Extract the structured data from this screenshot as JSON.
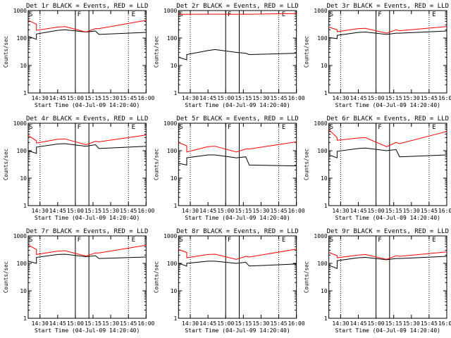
{
  "colors": {
    "background": "#ffffff",
    "events": "#000000",
    "lld": "#ff0000",
    "axis": "#000000"
  },
  "chart_data": [
    {
      "type": "line",
      "title": "Det 1r BLACK = Events, RED = LLD",
      "xlabel": "Start Time (04-Jul-09 14:20:40)",
      "ylabel": "Counts/sec",
      "x_ticks": [
        "14:30",
        "14:45",
        "15:00",
        "15:15",
        "15:30",
        "15:45",
        "16:00"
      ],
      "y_ticks": [
        "1",
        "10",
        "100",
        "1000"
      ],
      "y_scale": "log",
      "ylim": [
        1,
        1000
      ],
      "markers": [
        "S",
        "F",
        "E"
      ],
      "series": [
        {
          "kind": "events",
          "x_min": [
            0,
            7,
            7,
            25,
            31,
            49,
            57,
            60,
            100
          ],
          "values": [
            115,
            90,
            140,
            190,
            200,
            165,
            180,
            135,
            160
          ]
        },
        {
          "kind": "lld",
          "x_min": [
            0,
            7,
            7,
            25,
            31,
            49,
            57,
            60,
            100
          ],
          "values": [
            440,
            320,
            190,
            250,
            260,
            165,
            220,
            220,
            440
          ]
        }
      ]
    },
    {
      "type": "line",
      "title": "Det 2r BLACK = Events, RED = LLD",
      "xlabel": "Start Time (04-Jul-09 14:20:40)",
      "ylabel": "Counts/sec",
      "x_ticks": [
        "14:30",
        "14:45",
        "15:00",
        "15:15",
        "15:30",
        "15:45",
        "16:00"
      ],
      "y_ticks": [
        "1",
        "10",
        "100",
        "1000"
      ],
      "y_scale": "log",
      "ylim": [
        1,
        1000
      ],
      "markers": [
        "S",
        "F",
        "E"
      ],
      "series": [
        {
          "kind": "events",
          "x_min": [
            0,
            7,
            7,
            25,
            31,
            49,
            57,
            60,
            100
          ],
          "values": [
            20,
            16,
            25,
            35,
            38,
            30,
            28,
            25,
            28
          ]
        },
        {
          "kind": "lld",
          "x_min": [
            0,
            7,
            7,
            25,
            31,
            49,
            57,
            60,
            100
          ],
          "values": [
            730,
            730,
            730,
            740,
            740,
            730,
            740,
            735,
            780
          ]
        }
      ]
    },
    {
      "type": "line",
      "title": "Det 3r BLACK = Events, RED = LLD",
      "xlabel": "Start Time (04-Jul-09 14:20:40)",
      "ylabel": "Counts/sec",
      "x_ticks": [
        "14:30",
        "14:45",
        "15:00",
        "15:15",
        "15:30",
        "15:45",
        "16:00"
      ],
      "y_ticks": [
        "1",
        "10",
        "100",
        "1000"
      ],
      "y_scale": "log",
      "ylim": [
        1,
        1000
      ],
      "markers": [
        "S",
        "F",
        "E"
      ],
      "series": [
        {
          "kind": "events",
          "x_min": [
            0,
            7,
            7,
            25,
            31,
            49,
            57,
            60,
            100
          ],
          "values": [
            105,
            95,
            125,
            160,
            165,
            135,
            150,
            150,
            180
          ]
        },
        {
          "kind": "lld",
          "x_min": [
            0,
            7,
            7,
            25,
            31,
            49,
            57,
            60,
            100
          ],
          "values": [
            250,
            200,
            170,
            220,
            225,
            150,
            200,
            185,
            260
          ]
        }
      ]
    },
    {
      "type": "line",
      "title": "Det 4r BLACK = Events, RED = LLD",
      "xlabel": "Start Time (04-Jul-09 14:20:40)",
      "ylabel": "Counts/sec",
      "x_ticks": [
        "14:30",
        "14:45",
        "15:00",
        "15:15",
        "15:30",
        "15:45",
        "16:00"
      ],
      "y_ticks": [
        "1",
        "10",
        "100",
        "1000"
      ],
      "y_scale": "log",
      "ylim": [
        1,
        1000
      ],
      "markers": [
        "S",
        "F",
        "E"
      ],
      "series": [
        {
          "kind": "events",
          "x_min": [
            0,
            7,
            7,
            25,
            31,
            49,
            57,
            60,
            100
          ],
          "values": [
            100,
            80,
            135,
            175,
            180,
            145,
            165,
            120,
            145
          ]
        },
        {
          "kind": "lld",
          "x_min": [
            0,
            7,
            7,
            25,
            31,
            49,
            57,
            60,
            100
          ],
          "values": [
            360,
            230,
            190,
            260,
            270,
            165,
            220,
            210,
            370
          ]
        }
      ]
    },
    {
      "type": "line",
      "title": "Det 5r BLACK = Events, RED = LLD",
      "xlabel": "Start Time (04-Jul-09 14:20:40)",
      "ylabel": "Counts/sec",
      "x_ticks": [
        "14:30",
        "14:45",
        "15:00",
        "15:15",
        "15:30",
        "15:45",
        "16:00"
      ],
      "y_ticks": [
        "1",
        "10",
        "100",
        "1000"
      ],
      "y_scale": "log",
      "ylim": [
        1,
        1000
      ],
      "markers": [
        "S",
        "F",
        "E"
      ],
      "series": [
        {
          "kind": "events",
          "x_min": [
            0,
            7,
            7,
            25,
            31,
            49,
            57,
            60,
            100
          ],
          "values": [
            35,
            30,
            55,
            70,
            70,
            55,
            60,
            30,
            28
          ]
        },
        {
          "kind": "lld",
          "x_min": [
            0,
            7,
            7,
            25,
            31,
            49,
            57,
            60,
            100
          ],
          "values": [
            200,
            150,
            90,
            140,
            145,
            90,
            115,
            115,
            210
          ]
        }
      ]
    },
    {
      "type": "line",
      "title": "Det 6r BLACK = Events, RED = LLD",
      "xlabel": "Start Time (04-Jul-09 14:20:40)",
      "ylabel": "Counts/sec",
      "x_ticks": [
        "14:30",
        "14:45",
        "15:00",
        "15:15",
        "15:30",
        "15:45",
        "16:00"
      ],
      "y_ticks": [
        "1",
        "10",
        "100",
        "1000"
      ],
      "y_scale": "log",
      "ylim": [
        1,
        1000
      ],
      "markers": [
        "S",
        "F",
        "E"
      ],
      "series": [
        {
          "kind": "events",
          "x_min": [
            0,
            7,
            7,
            25,
            31,
            49,
            57,
            60,
            100
          ],
          "values": [
            70,
            55,
            95,
            120,
            125,
            100,
            110,
            60,
            70
          ]
        },
        {
          "kind": "lld",
          "x_min": [
            0,
            7,
            7,
            25,
            31,
            49,
            57,
            60,
            100
          ],
          "values": [
            580,
            300,
            240,
            290,
            300,
            140,
            200,
            180,
            500
          ]
        }
      ]
    },
    {
      "type": "line",
      "title": "Det 7r BLACK = Events, RED = LLD",
      "xlabel": "Start Time (04-Jul-09 14:20:40)",
      "ylabel": "Counts/sec",
      "x_ticks": [
        "14:30",
        "14:45",
        "15:00",
        "15:15",
        "15:30",
        "15:45",
        "16:00"
      ],
      "y_ticks": [
        "1",
        "10",
        "100",
        "1000"
      ],
      "y_scale": "log",
      "ylim": [
        1,
        1000
      ],
      "markers": [
        "S",
        "F",
        "E"
      ],
      "series": [
        {
          "kind": "events",
          "x_min": [
            0,
            7,
            7,
            25,
            31,
            49,
            57,
            60,
            100
          ],
          "values": [
            120,
            100,
            165,
            210,
            215,
            175,
            190,
            150,
            170
          ]
        },
        {
          "kind": "lld",
          "x_min": [
            0,
            7,
            7,
            25,
            31,
            49,
            57,
            60,
            100
          ],
          "values": [
            470,
            320,
            210,
            280,
            290,
            185,
            240,
            240,
            460
          ]
        }
      ]
    },
    {
      "type": "line",
      "title": "Det 8r BLACK = Events, RED = LLD",
      "xlabel": "Start Time (04-Jul-09 14:20:40)",
      "ylabel": "Counts/sec",
      "x_ticks": [
        "14:30",
        "14:45",
        "15:00",
        "15:15",
        "15:30",
        "15:45",
        "16:00"
      ],
      "y_ticks": [
        "1",
        "10",
        "100",
        "1000"
      ],
      "y_scale": "log",
      "ylim": [
        1,
        1000
      ],
      "markers": [
        "S",
        "F",
        "E"
      ],
      "series": [
        {
          "kind": "events",
          "x_min": [
            0,
            7,
            7,
            25,
            31,
            49,
            57,
            60,
            100
          ],
          "values": [
            100,
            80,
            100,
            120,
            120,
            100,
            110,
            80,
            95
          ]
        },
        {
          "kind": "lld",
          "x_min": [
            0,
            7,
            7,
            25,
            31,
            49,
            57,
            60,
            100
          ],
          "values": [
            320,
            250,
            160,
            210,
            215,
            140,
            180,
            170,
            330
          ]
        }
      ]
    },
    {
      "type": "line",
      "title": "Det 9r BLACK = Events, RED = LLD",
      "xlabel": "Start Time (04-Jul-09 14:20:40)",
      "ylabel": "Counts/sec",
      "x_ticks": [
        "14:30",
        "14:45",
        "15:00",
        "15:15",
        "15:30",
        "15:45",
        "16:00"
      ],
      "y_ticks": [
        "1",
        "10",
        "100",
        "1000"
      ],
      "y_scale": "log",
      "ylim": [
        1,
        1000
      ],
      "markers": [
        "S",
        "F",
        "E"
      ],
      "series": [
        {
          "kind": "events",
          "x_min": [
            0,
            7,
            7,
            25,
            31,
            49,
            57,
            60,
            100
          ],
          "values": [
            85,
            65,
            125,
            160,
            165,
            135,
            150,
            150,
            180
          ]
        },
        {
          "kind": "lld",
          "x_min": [
            0,
            7,
            7,
            25,
            31,
            49,
            57,
            60,
            100
          ],
          "values": [
            250,
            190,
            160,
            200,
            210,
            140,
            190,
            180,
            260
          ]
        }
      ]
    }
  ]
}
